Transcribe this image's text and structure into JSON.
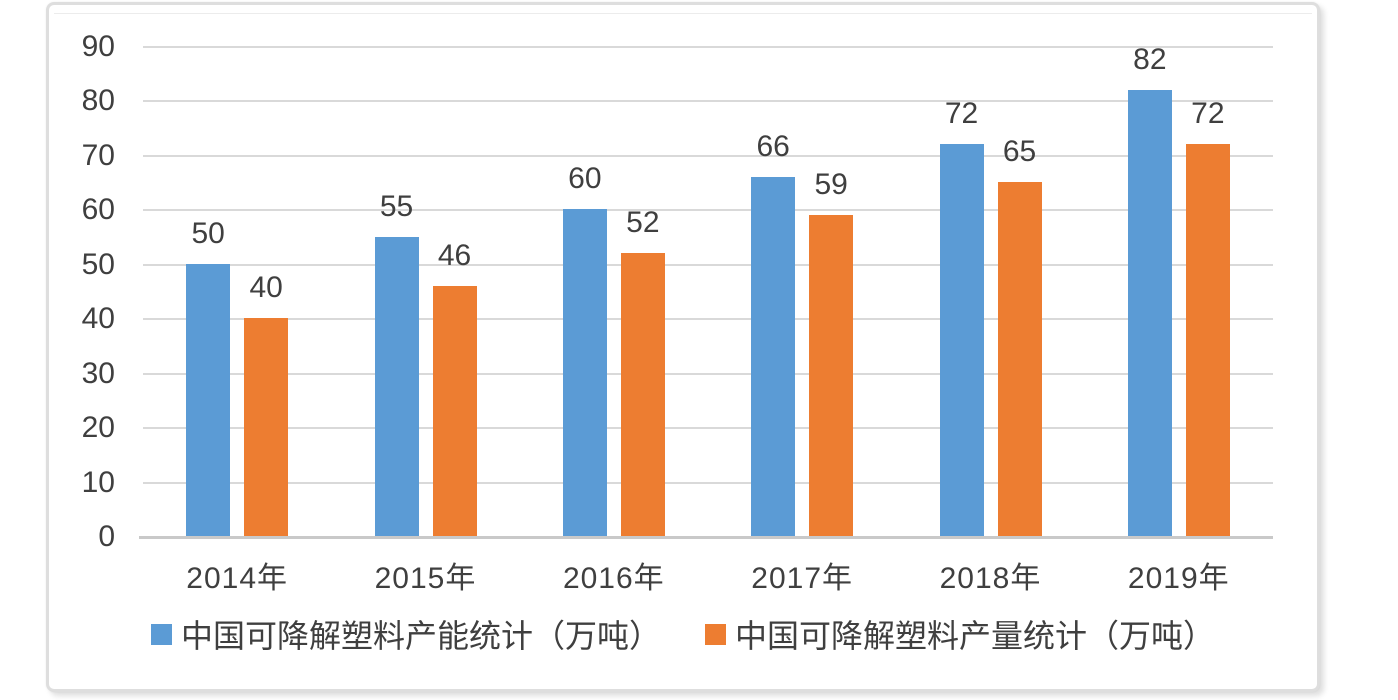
{
  "chart_data": {
    "type": "bar",
    "title": "",
    "categories": [
      "2014年",
      "2015年",
      "2016年",
      "2017年",
      "2018年",
      "2019年"
    ],
    "series": [
      {
        "name": "中国可降解塑料产能统计（万吨）",
        "color": "#5B9BD5",
        "values": [
          50,
          55,
          60,
          66,
          72,
          82
        ]
      },
      {
        "name": "中国可降解塑料产量统计（万吨）",
        "color": "#ED7D31",
        "values": [
          40,
          46,
          52,
          59,
          65,
          72
        ]
      }
    ],
    "xlabel": "",
    "ylabel": "",
    "ylim": [
      0,
      90
    ],
    "yticks": [
      0,
      10,
      20,
      30,
      40,
      50,
      60,
      70,
      80,
      90
    ],
    "grid": true,
    "legend_position": "bottom",
    "data_labels": true
  },
  "style_colors": {
    "bar_blue": "#5B9BD5",
    "bar_orange": "#ED7D31",
    "gridline": "#D9D9D9",
    "axis_line": "#C9C9C9",
    "label_text": "#3F3F3F",
    "frame_border": "#DEDEDE"
  }
}
